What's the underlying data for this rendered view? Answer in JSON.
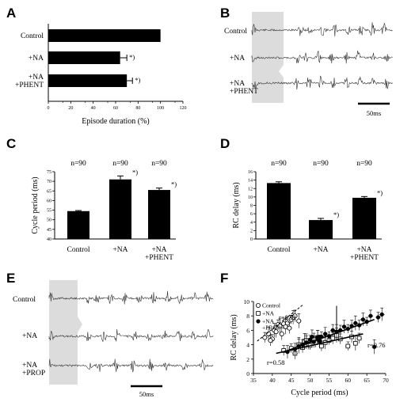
{
  "panels": {
    "A": "A",
    "B": "B",
    "C": "C",
    "D": "D",
    "E": "E",
    "F": "F"
  },
  "traces": {
    "B": {
      "labels": [
        "Control",
        "+NA",
        "+NA\n+PHENT"
      ],
      "scale_label": "50ms"
    },
    "E": {
      "labels": [
        "Control",
        "+NA",
        "+NA\n+PROP"
      ],
      "scale_label": "50ms"
    }
  },
  "chart_data": [
    {
      "panel": "A",
      "type": "bar",
      "orientation": "horizontal",
      "categories": [
        "Control",
        "+NA",
        "+NA\n+PHENT"
      ],
      "values": [
        100,
        64,
        70
      ],
      "errors": [
        0,
        6,
        5
      ],
      "significance": [
        "",
        "*)",
        "*)"
      ],
      "xlabel": "Episode duration (%)",
      "xlim": [
        0,
        120
      ],
      "xticks": [
        0,
        20,
        40,
        60,
        80,
        100,
        120
      ]
    },
    {
      "panel": "C",
      "type": "bar",
      "categories": [
        "Control",
        "+NA",
        "+NA\n+PHENT"
      ],
      "values": [
        54.5,
        71,
        65.5
      ],
      "errors": [
        0.3,
        1.8,
        1.0
      ],
      "n_labels": [
        "n=90",
        "n=90",
        "n=90"
      ],
      "significance": [
        "",
        "*)",
        "*)"
      ],
      "ylabel": "Cycle period (ms)",
      "ylim": [
        40,
        75
      ],
      "yticks": [
        40,
        45,
        50,
        55,
        60,
        65,
        70,
        75
      ]
    },
    {
      "panel": "D",
      "type": "bar",
      "categories": [
        "Control",
        "+NA",
        "+NA\n+PHENT"
      ],
      "values": [
        13.3,
        4.5,
        9.8
      ],
      "errors": [
        0.3,
        0.4,
        0.3
      ],
      "n_labels": [
        "n=90",
        "n=90",
        "n=90"
      ],
      "significance": [
        "",
        "*)",
        "*)"
      ],
      "ylabel": "RC delay (ms)",
      "ylim": [
        0,
        16
      ],
      "yticks": [
        0,
        2,
        4,
        6,
        8,
        10,
        12,
        14,
        16
      ]
    },
    {
      "panel": "F",
      "type": "scatter",
      "xlabel": "Cycle period (ms)",
      "ylabel": "RC delay (ms)",
      "xlim": [
        35,
        70
      ],
      "ylim": [
        0,
        10
      ],
      "xticks": [
        35,
        40,
        45,
        50,
        55,
        60,
        65,
        70
      ],
      "yticks": [
        0,
        2,
        4,
        6,
        8,
        10
      ],
      "series": [
        {
          "name": "Control",
          "marker": "open-circle",
          "points": [
            [
              38,
              5.0
            ],
            [
              39,
              5.5
            ],
            [
              40,
              4.8
            ],
            [
              40.5,
              6.0
            ],
            [
              41,
              5.8
            ],
            [
              41.5,
              6.8
            ],
            [
              42,
              6.6
            ],
            [
              43,
              6.9
            ],
            [
              43.5,
              6.5
            ],
            [
              44,
              7.0
            ],
            [
              44.5,
              6.3
            ],
            [
              45,
              7.5
            ],
            [
              45.5,
              7.8
            ],
            [
              46,
              8.0
            ],
            [
              47,
              7.3
            ],
            [
              42.5,
              5.5
            ],
            [
              39.5,
              4.6
            ]
          ],
          "fit": {
            "x": [
              36,
              48
            ],
            "y": [
              4.5,
              9.5
            ],
            "style": "dashed",
            "label": "r=0.91"
          }
        },
        {
          "name": "+NA",
          "marker": "open-square",
          "points": [
            [
              43,
              3.2
            ],
            [
              45,
              3.5
            ],
            [
              46,
              2.8
            ],
            [
              47,
              4.0
            ],
            [
              48,
              3.6
            ],
            [
              48.5,
              4.5
            ],
            [
              49,
              4.6
            ],
            [
              49.5,
              4.1
            ],
            [
              50,
              3.9
            ],
            [
              51,
              4.8
            ],
            [
              51.5,
              4.3
            ],
            [
              52,
              5.0
            ],
            [
              52.5,
              4.4
            ],
            [
              53,
              3.8
            ],
            [
              54,
              4.3
            ],
            [
              55,
              4.6
            ],
            [
              56,
              4.9
            ],
            [
              57,
              5.3
            ],
            [
              58,
              4.8
            ],
            [
              60,
              3.8
            ],
            [
              61,
              5.1
            ],
            [
              62,
              4.2
            ],
            [
              63,
              4.9
            ]
          ],
          "fit": {
            "x": [
              41,
              64
            ],
            "y": [
              2.8,
              5.5
            ],
            "style": "solid",
            "label": "r=0.58"
          }
        },
        {
          "name": "+NA\n+PROP",
          "marker": "filled-circle",
          "points": [
            [
              44,
              3.0
            ],
            [
              46,
              3.4
            ],
            [
              47,
              3.8
            ],
            [
              48,
              4.0
            ],
            [
              49,
              4.3
            ],
            [
              50,
              4.7
            ],
            [
              51,
              4.4
            ],
            [
              52,
              5.0
            ],
            [
              53,
              5.1
            ],
            [
              54,
              5.5
            ],
            [
              55,
              5.2
            ],
            [
              56,
              6.0
            ],
            [
              57,
              5.8
            ],
            [
              58,
              6.0
            ],
            [
              59,
              6.5
            ],
            [
              60,
              6.2
            ],
            [
              61,
              6.6
            ],
            [
              62,
              7.0
            ],
            [
              63,
              6.7
            ],
            [
              64,
              7.5
            ],
            [
              65,
              7.2
            ],
            [
              66,
              8.0
            ],
            [
              67,
              3.7
            ],
            [
              68,
              7.8
            ],
            [
              69,
              8.2
            ],
            [
              50.5,
              5.1
            ],
            [
              52.5,
              4.5
            ]
          ],
          "fit": {
            "x": [
              43,
              67
            ],
            "y": [
              3.0,
              7.5
            ],
            "style": "solid",
            "label": "r=0.76"
          }
        }
      ],
      "arrow": {
        "x": 57,
        "from_y": 9.4,
        "to_y": 5.4
      }
    }
  ]
}
